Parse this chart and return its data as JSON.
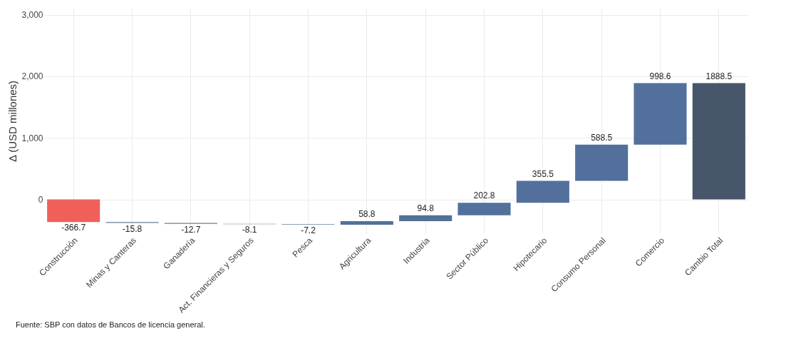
{
  "chart_data": {
    "type": "bar",
    "ylabel": "Δ (USD millones)",
    "categories": [
      "Construcción",
      "Minas y Canteras",
      "Ganadería",
      "Act. Financieras y Seguros",
      "Pesca",
      "Agricultura",
      "Industria",
      "Sector Público",
      "Hipotecario",
      "Consumo Personal",
      "Comercio",
      "Cambio Total"
    ],
    "values": [
      -366.7,
      -15.8,
      -12.7,
      -8.1,
      -7.2,
      58.8,
      94.8,
      202.8,
      355.5,
      588.5,
      998.6,
      1888.5
    ],
    "base": [
      0,
      -366.7,
      -382.5,
      -395.2,
      -403.3,
      -410.5,
      -351.7,
      -256.9,
      -54.1,
      301.4,
      889.9,
      0
    ],
    "colors": [
      "#f0605a",
      "#6d7f99",
      "#6d7f99",
      "#6d7f99",
      "#6d7f99",
      "#52709b",
      "#52709b",
      "#52709b",
      "#52709b",
      "#52709b",
      "#52709b",
      "#47566a"
    ],
    "data_labels": true,
    "ylim": [
      -550,
      3100
    ],
    "yticks": [
      0,
      {
        "value": 1000,
        "label": "1,000"
      },
      {
        "value": 2000,
        "label": "2,000"
      },
      {
        "value": 3000,
        "label": "3,000"
      }
    ],
    "grid": true,
    "annotations": [
      "Fuente: SBP con datos de Bancos de licencia general."
    ]
  }
}
